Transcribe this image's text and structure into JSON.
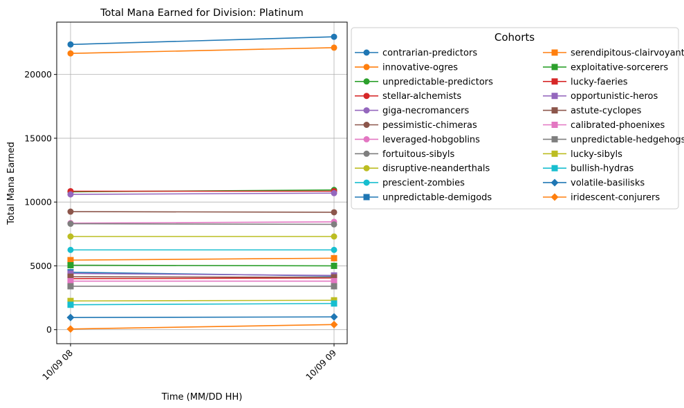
{
  "chart_data": {
    "type": "line",
    "title": "Total Mana Earned for Division: Platinum",
    "xlabel": "Time (MM/DD HH)",
    "ylabel": "Total Mana Earned",
    "x": [
      "10/09 08",
      "10/09 09"
    ],
    "ylim": [
      -1100,
      24100
    ],
    "yticks": [
      0,
      5000,
      10000,
      15000,
      20000
    ],
    "grid": true,
    "legend": {
      "title": "Cohorts",
      "placement": "outside-right",
      "columns": 2
    },
    "series": [
      {
        "name": "contrarian-predictors",
        "color": "#1f77b4",
        "marker": "circle",
        "values": [
          22350,
          22950
        ]
      },
      {
        "name": "innovative-ogres",
        "color": "#ff7f0e",
        "marker": "circle",
        "values": [
          21650,
          22100
        ]
      },
      {
        "name": "unpredictable-predictors",
        "color": "#2ca02c",
        "marker": "circle",
        "values": [
          10800,
          10950
        ]
      },
      {
        "name": "stellar-alchemists",
        "color": "#d62728",
        "marker": "circle",
        "values": [
          10850,
          10850
        ]
      },
      {
        "name": "giga-necromancers",
        "color": "#9467bd",
        "marker": "circle",
        "values": [
          10600,
          10700
        ]
      },
      {
        "name": "pessimistic-chimeras",
        "color": "#8c564b",
        "marker": "circle",
        "values": [
          9250,
          9200
        ]
      },
      {
        "name": "leveraged-hobgoblins",
        "color": "#e377c2",
        "marker": "circle",
        "values": [
          8350,
          8450
        ]
      },
      {
        "name": "fortuitous-sibyls",
        "color": "#7f7f7f",
        "marker": "circle",
        "values": [
          8300,
          8250
        ]
      },
      {
        "name": "disruptive-neanderthals",
        "color": "#bcbd22",
        "marker": "circle",
        "values": [
          7300,
          7300
        ]
      },
      {
        "name": "prescient-zombies",
        "color": "#17becf",
        "marker": "circle",
        "values": [
          6250,
          6250
        ]
      },
      {
        "name": "unpredictable-demigods",
        "color": "#1f77b4",
        "marker": "square",
        "values": [
          4500,
          4200
        ]
      },
      {
        "name": "serendipitous-clairvoyants",
        "color": "#ff7f0e",
        "marker": "square",
        "values": [
          5450,
          5600
        ]
      },
      {
        "name": "exploitative-sorcerers",
        "color": "#2ca02c",
        "marker": "square",
        "values": [
          5050,
          5000
        ]
      },
      {
        "name": "lucky-faeries",
        "color": "#d62728",
        "marker": "square",
        "values": [
          4000,
          4050
        ]
      },
      {
        "name": "opportunistic-heros",
        "color": "#9467bd",
        "marker": "square",
        "values": [
          4400,
          4250
        ]
      },
      {
        "name": "astute-cyclopes",
        "color": "#8c564b",
        "marker": "square",
        "values": [
          4150,
          4100
        ]
      },
      {
        "name": "calibrated-phoenixes",
        "color": "#e377c2",
        "marker": "square",
        "values": [
          3800,
          3800
        ]
      },
      {
        "name": "unpredictable-hedgehogs",
        "color": "#7f7f7f",
        "marker": "square",
        "values": [
          3400,
          3400
        ]
      },
      {
        "name": "lucky-sibyls",
        "color": "#bcbd22",
        "marker": "square",
        "values": [
          2250,
          2300
        ]
      },
      {
        "name": "bullish-hydras",
        "color": "#17becf",
        "marker": "square",
        "values": [
          1950,
          2050
        ]
      },
      {
        "name": "volatile-basilisks",
        "color": "#1f77b4",
        "marker": "diamond",
        "values": [
          950,
          1000
        ]
      },
      {
        "name": "iridescent-conjurers",
        "color": "#ff7f0e",
        "marker": "diamond",
        "values": [
          50,
          400
        ]
      }
    ]
  }
}
